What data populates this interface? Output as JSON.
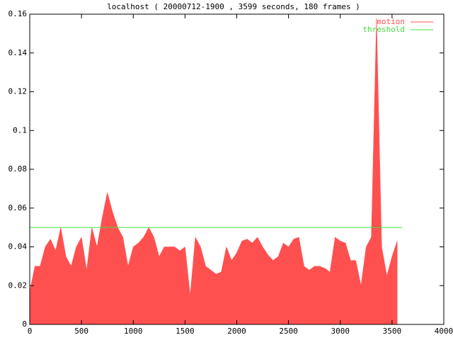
{
  "chart_data": {
    "type": "area",
    "title": "localhost ( 20000712-1900 , 3599 seconds, 180 frames )",
    "xlim": [
      0,
      4000
    ],
    "xticks": [
      0,
      500,
      1000,
      1500,
      2000,
      2500,
      3000,
      3500,
      4000
    ],
    "ylim": [
      0,
      0.16
    ],
    "yticks": [
      0,
      0.02,
      0.04,
      0.06,
      0.08,
      0.1,
      0.12,
      0.14,
      0.16
    ],
    "grid": false,
    "legend": "top-right",
    "series": [
      {
        "name": "motion",
        "color": "#ff5050",
        "style": "area",
        "x": [
          0,
          50,
          100,
          150,
          200,
          250,
          300,
          350,
          400,
          450,
          500,
          550,
          600,
          650,
          700,
          750,
          800,
          850,
          900,
          950,
          1000,
          1050,
          1100,
          1150,
          1200,
          1250,
          1300,
          1350,
          1400,
          1450,
          1500,
          1550,
          1600,
          1650,
          1700,
          1750,
          1800,
          1850,
          1900,
          1950,
          2000,
          2050,
          2100,
          2150,
          2200,
          2250,
          2300,
          2350,
          2400,
          2450,
          2500,
          2550,
          2600,
          2650,
          2700,
          2750,
          2800,
          2850,
          2900,
          2950,
          3000,
          3050,
          3100,
          3150,
          3200,
          3250,
          3300,
          3350,
          3400,
          3450,
          3500,
          3550
        ],
        "values": [
          0.017,
          0.03,
          0.03,
          0.04,
          0.044,
          0.038,
          0.05,
          0.035,
          0.03,
          0.04,
          0.045,
          0.028,
          0.05,
          0.04,
          0.055,
          0.068,
          0.058,
          0.05,
          0.045,
          0.03,
          0.04,
          0.042,
          0.045,
          0.05,
          0.045,
          0.035,
          0.04,
          0.04,
          0.04,
          0.038,
          0.04,
          0.015,
          0.045,
          0.04,
          0.03,
          0.028,
          0.026,
          0.027,
          0.04,
          0.033,
          0.037,
          0.043,
          0.044,
          0.042,
          0.045,
          0.04,
          0.036,
          0.033,
          0.035,
          0.042,
          0.04,
          0.044,
          0.045,
          0.03,
          0.028,
          0.03,
          0.03,
          0.029,
          0.027,
          0.045,
          0.043,
          0.042,
          0.033,
          0.033,
          0.02,
          0.04,
          0.045,
          0.158,
          0.04,
          0.025,
          0.035,
          0.043
        ]
      },
      {
        "name": "threshold",
        "color": "#40e040",
        "style": "line",
        "x": [
          0,
          3599
        ],
        "values": [
          0.05,
          0.05
        ]
      }
    ]
  }
}
